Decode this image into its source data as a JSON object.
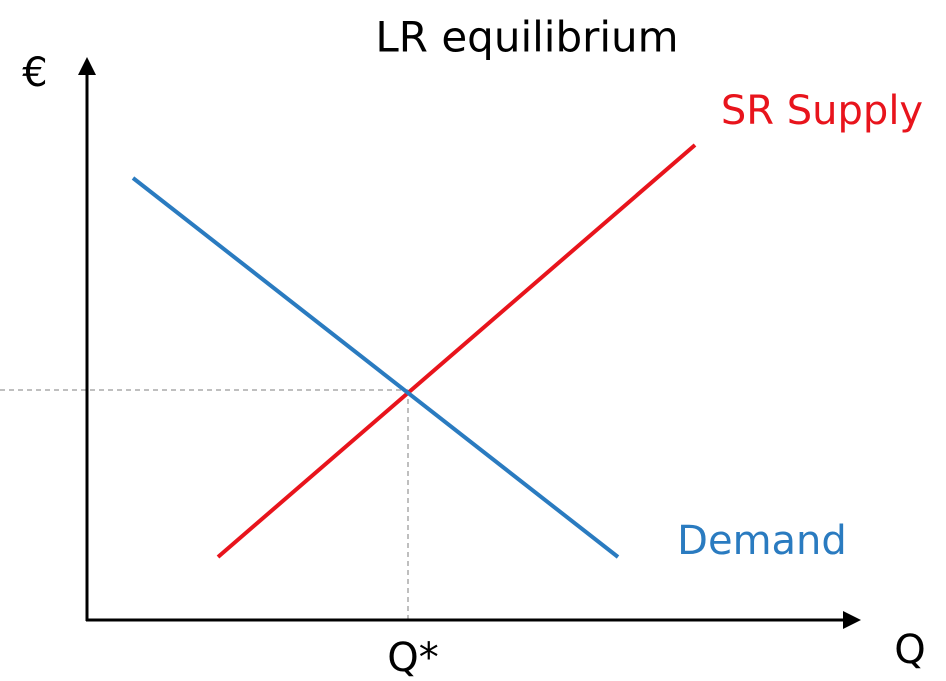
{
  "title": "LR equilibrium",
  "y_axis": {
    "label": "€"
  },
  "x_axis": {
    "label": "Q"
  },
  "curves": [
    {
      "label": "SR Supply",
      "color": "#e8141c"
    },
    {
      "label": "Demand",
      "color": "#2a7bc0"
    }
  ],
  "equilibrium": {
    "label": "Q*"
  }
}
